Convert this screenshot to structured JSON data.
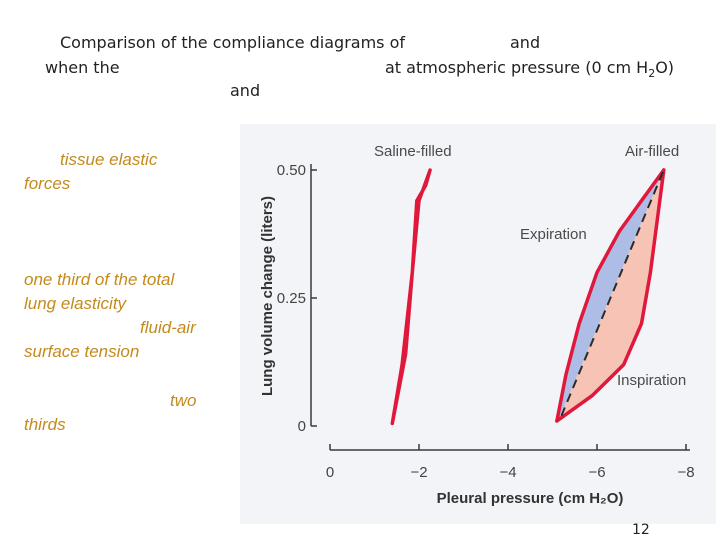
{
  "slide": {
    "title_line1_a": "Comparison of the compliance diagrams of",
    "title_line1_b": "and",
    "title_line2_a": "when the",
    "title_line2_b": "at atmospheric pressure (0 cm H",
    "title_line2_sub": "2",
    "title_line2_c": "O)",
    "title_line3": "and",
    "side_text": {
      "p1_line1": "tissue elastic",
      "p1_line2": "forces",
      "p2_line1": "one third of the total",
      "p2_line2": "lung elasticity",
      "p2_line3": "fluid-air",
      "p2_line4": "surface tension",
      "p3_line1": "two",
      "p3_line2": "thirds"
    },
    "page_number": "12"
  },
  "colors": {
    "curve_outline": "#e0183c",
    "saline_fill": "#a9aaa8",
    "expiration_fill": "#aebde6",
    "inspiration_fill": "#f6c3b4",
    "dashed_line": "#2b2b2b",
    "axis": "#3a3a3a",
    "chart_background": "#f2f4f8"
  },
  "chart_data": {
    "type": "line",
    "xlabel": "Pleural pressure (cm H₂O)",
    "ylabel": "Lung volume change (liters)",
    "xlim": [
      0,
      -8
    ],
    "ylim": [
      0,
      0.5
    ],
    "x_ticks": [
      "0",
      "−2",
      "−4",
      "−6",
      "−8"
    ],
    "x_tick_values": [
      0,
      -2,
      -4,
      -6,
      -8
    ],
    "y_ticks": [
      "0",
      "0.25",
      "0.50"
    ],
    "y_tick_values": [
      0,
      0.25,
      0.5
    ],
    "annotations": {
      "saline": "Saline-filled",
      "air": "Air-filled",
      "expiration": "Expiration",
      "inspiration": "Inspiration"
    },
    "series": [
      {
        "key": "saline_filled",
        "x": [
          -1.4,
          -1.62,
          -1.85,
          -2.0,
          -2.25,
          -2.15,
          -1.95,
          -1.85,
          -1.7,
          -1.4
        ],
        "y": [
          0.005,
          0.12,
          0.3,
          0.44,
          0.5,
          0.47,
          0.44,
          0.3,
          0.14,
          0.005
        ]
      },
      {
        "key": "air_expiration",
        "x": [
          -5.1,
          -5.3,
          -5.6,
          -6.0,
          -6.5,
          -7.0,
          -7.5
        ],
        "y": [
          0.01,
          0.1,
          0.2,
          0.3,
          0.38,
          0.44,
          0.5
        ]
      },
      {
        "key": "air_inspiration",
        "x": [
          -5.1,
          -5.9,
          -6.6,
          -7.0,
          -7.2,
          -7.35,
          -7.5
        ],
        "y": [
          0.01,
          0.06,
          0.12,
          0.2,
          0.3,
          0.4,
          0.5
        ]
      },
      {
        "key": "air_midline",
        "x": [
          -5.2,
          -7.5
        ],
        "y": [
          0.02,
          0.5
        ]
      }
    ]
  }
}
